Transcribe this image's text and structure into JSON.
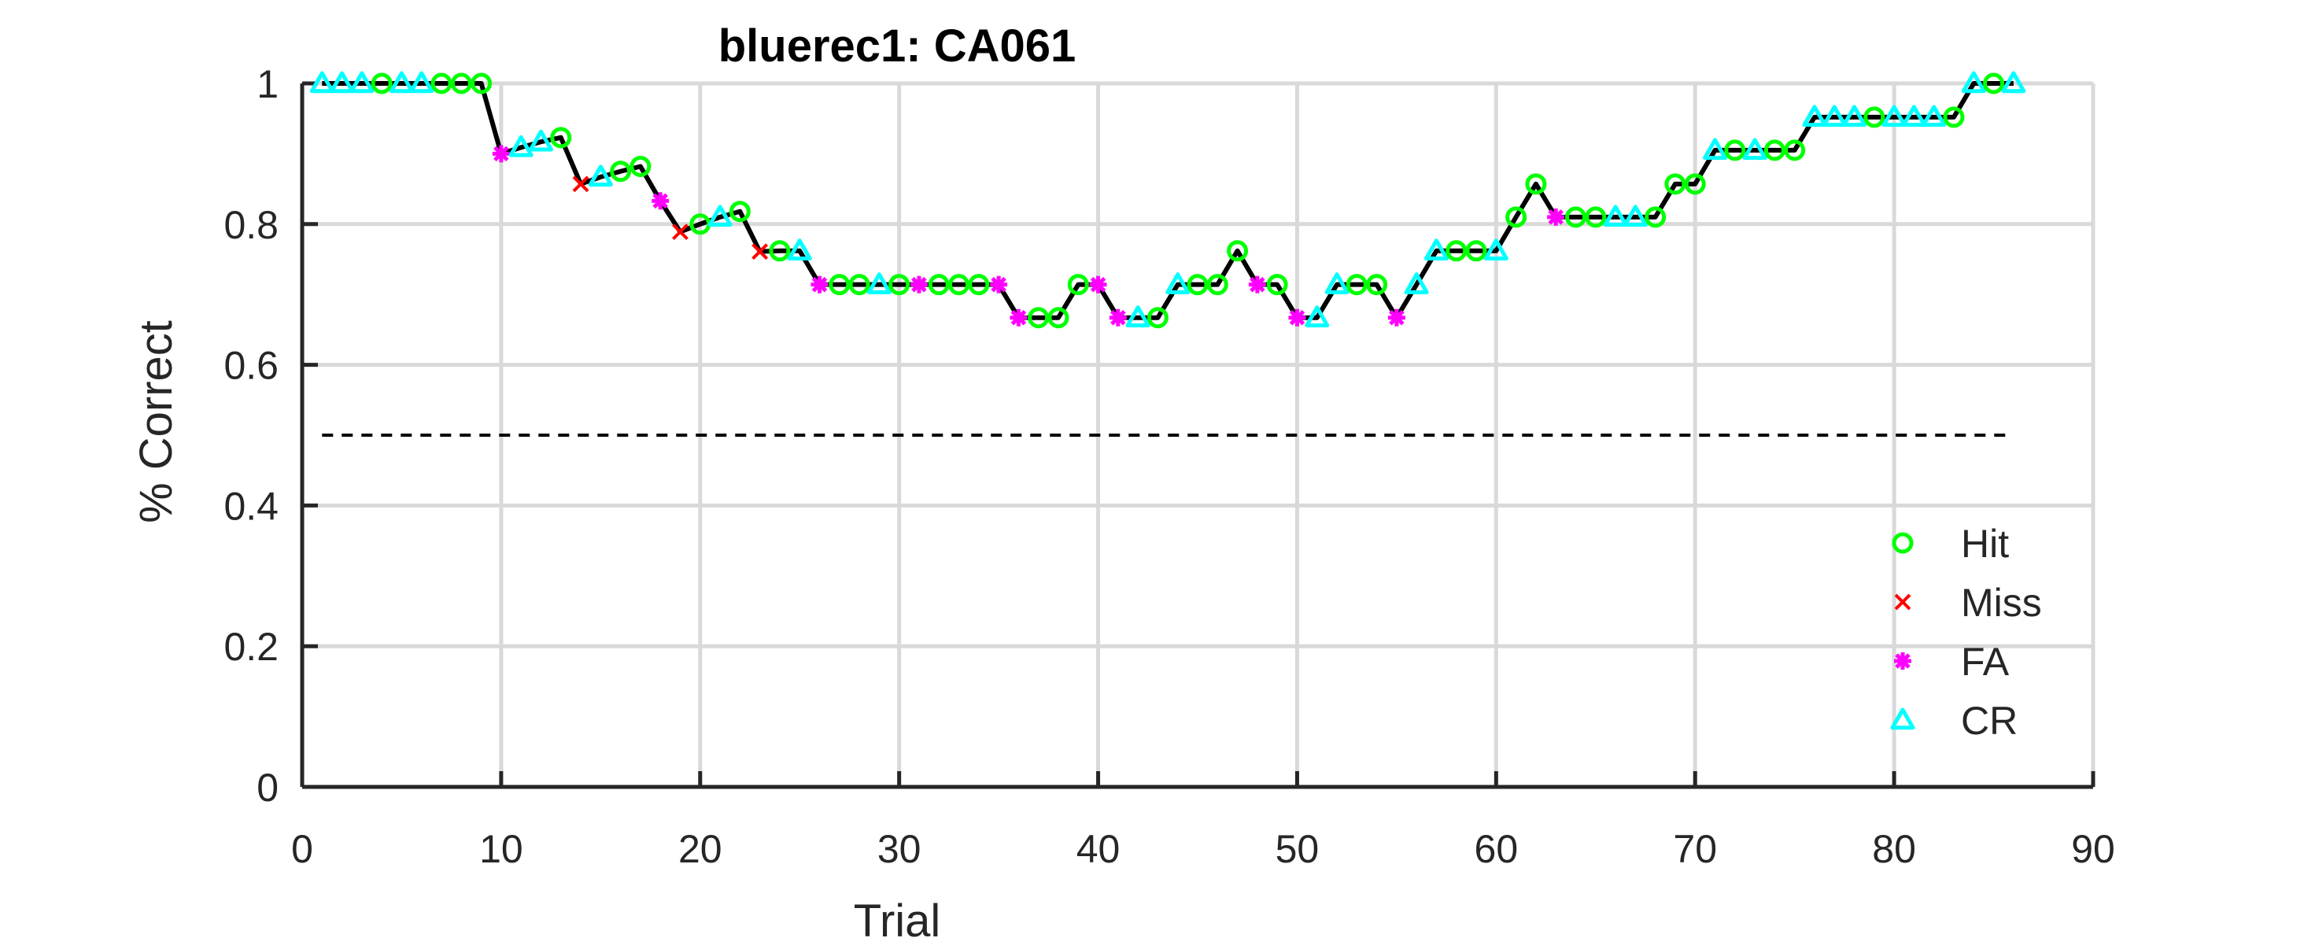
{
  "chart_data": {
    "type": "line",
    "title": "bluerec1: CA061",
    "xlabel": "Trial",
    "ylabel": "% Correct",
    "xlim": [
      0,
      90
    ],
    "ylim": [
      0,
      1
    ],
    "xticks": [
      0,
      10,
      20,
      30,
      40,
      50,
      60,
      70,
      80,
      90
    ],
    "yticks": [
      0,
      0.2,
      0.4,
      0.6,
      0.8,
      1
    ],
    "grid": true,
    "legend_position": "lower-right",
    "chance_level": 0.5,
    "chance_range": [
      1,
      86
    ],
    "series": [
      {
        "name": "Hit",
        "marker": "circle",
        "color": "#00ff00"
      },
      {
        "name": "Miss",
        "marker": "x",
        "color": "#ff0000"
      },
      {
        "name": "FA",
        "marker": "asterisk",
        "color": "#ff00ff"
      },
      {
        "name": "CR",
        "marker": "triangle",
        "color": "#00ffff"
      }
    ],
    "trials": [
      {
        "x": 1,
        "y": 1.0,
        "outcome": "CR"
      },
      {
        "x": 2,
        "y": 1.0,
        "outcome": "CR"
      },
      {
        "x": 3,
        "y": 1.0,
        "outcome": "CR"
      },
      {
        "x": 4,
        "y": 1.0,
        "outcome": "Hit"
      },
      {
        "x": 5,
        "y": 1.0,
        "outcome": "CR"
      },
      {
        "x": 6,
        "y": 1.0,
        "outcome": "CR"
      },
      {
        "x": 7,
        "y": 1.0,
        "outcome": "Hit"
      },
      {
        "x": 8,
        "y": 1.0,
        "outcome": "Hit"
      },
      {
        "x": 9,
        "y": 1.0,
        "outcome": "Hit"
      },
      {
        "x": 10,
        "y": 0.9,
        "outcome": "FA"
      },
      {
        "x": 11,
        "y": 0.909,
        "outcome": "CR"
      },
      {
        "x": 12,
        "y": 0.917,
        "outcome": "CR"
      },
      {
        "x": 13,
        "y": 0.923,
        "outcome": "Hit"
      },
      {
        "x": 14,
        "y": 0.857,
        "outcome": "Miss"
      },
      {
        "x": 15,
        "y": 0.867,
        "outcome": "CR"
      },
      {
        "x": 16,
        "y": 0.875,
        "outcome": "Hit"
      },
      {
        "x": 17,
        "y": 0.882,
        "outcome": "Hit"
      },
      {
        "x": 18,
        "y": 0.833,
        "outcome": "FA"
      },
      {
        "x": 19,
        "y": 0.789,
        "outcome": "Miss"
      },
      {
        "x": 20,
        "y": 0.8,
        "outcome": "Hit"
      },
      {
        "x": 21,
        "y": 0.81,
        "outcome": "CR"
      },
      {
        "x": 22,
        "y": 0.818,
        "outcome": "Hit"
      },
      {
        "x": 23,
        "y": 0.761,
        "outcome": "Miss"
      },
      {
        "x": 24,
        "y": 0.762,
        "outcome": "Hit"
      },
      {
        "x": 25,
        "y": 0.762,
        "outcome": "CR"
      },
      {
        "x": 26,
        "y": 0.714,
        "outcome": "FA"
      },
      {
        "x": 27,
        "y": 0.714,
        "outcome": "Hit"
      },
      {
        "x": 28,
        "y": 0.714,
        "outcome": "Hit"
      },
      {
        "x": 29,
        "y": 0.714,
        "outcome": "CR"
      },
      {
        "x": 30,
        "y": 0.714,
        "outcome": "Hit"
      },
      {
        "x": 31,
        "y": 0.714,
        "outcome": "FA"
      },
      {
        "x": 32,
        "y": 0.714,
        "outcome": "Hit"
      },
      {
        "x": 33,
        "y": 0.714,
        "outcome": "Hit"
      },
      {
        "x": 34,
        "y": 0.714,
        "outcome": "Hit"
      },
      {
        "x": 35,
        "y": 0.714,
        "outcome": "FA"
      },
      {
        "x": 36,
        "y": 0.667,
        "outcome": "FA"
      },
      {
        "x": 37,
        "y": 0.667,
        "outcome": "Hit"
      },
      {
        "x": 38,
        "y": 0.667,
        "outcome": "Hit"
      },
      {
        "x": 39,
        "y": 0.714,
        "outcome": "Hit"
      },
      {
        "x": 40,
        "y": 0.714,
        "outcome": "FA"
      },
      {
        "x": 41,
        "y": 0.667,
        "outcome": "FA"
      },
      {
        "x": 42,
        "y": 0.667,
        "outcome": "CR"
      },
      {
        "x": 43,
        "y": 0.667,
        "outcome": "Hit"
      },
      {
        "x": 44,
        "y": 0.714,
        "outcome": "CR"
      },
      {
        "x": 45,
        "y": 0.714,
        "outcome": "Hit"
      },
      {
        "x": 46,
        "y": 0.714,
        "outcome": "Hit"
      },
      {
        "x": 47,
        "y": 0.762,
        "outcome": "Hit"
      },
      {
        "x": 48,
        "y": 0.714,
        "outcome": "FA"
      },
      {
        "x": 49,
        "y": 0.714,
        "outcome": "Hit"
      },
      {
        "x": 50,
        "y": 0.667,
        "outcome": "FA"
      },
      {
        "x": 51,
        "y": 0.667,
        "outcome": "CR"
      },
      {
        "x": 52,
        "y": 0.714,
        "outcome": "CR"
      },
      {
        "x": 53,
        "y": 0.714,
        "outcome": "Hit"
      },
      {
        "x": 54,
        "y": 0.714,
        "outcome": "Hit"
      },
      {
        "x": 55,
        "y": 0.667,
        "outcome": "FA"
      },
      {
        "x": 56,
        "y": 0.714,
        "outcome": "CR"
      },
      {
        "x": 57,
        "y": 0.762,
        "outcome": "CR"
      },
      {
        "x": 58,
        "y": 0.762,
        "outcome": "Hit"
      },
      {
        "x": 59,
        "y": 0.762,
        "outcome": "Hit"
      },
      {
        "x": 60,
        "y": 0.762,
        "outcome": "CR"
      },
      {
        "x": 61,
        "y": 0.81,
        "outcome": "Hit"
      },
      {
        "x": 62,
        "y": 0.857,
        "outcome": "Hit"
      },
      {
        "x": 63,
        "y": 0.81,
        "outcome": "FA"
      },
      {
        "x": 64,
        "y": 0.81,
        "outcome": "Hit"
      },
      {
        "x": 65,
        "y": 0.81,
        "outcome": "Hit"
      },
      {
        "x": 66,
        "y": 0.81,
        "outcome": "CR"
      },
      {
        "x": 67,
        "y": 0.81,
        "outcome": "CR"
      },
      {
        "x": 68,
        "y": 0.81,
        "outcome": "Hit"
      },
      {
        "x": 69,
        "y": 0.857,
        "outcome": "Hit"
      },
      {
        "x": 70,
        "y": 0.857,
        "outcome": "Hit"
      },
      {
        "x": 71,
        "y": 0.905,
        "outcome": "CR"
      },
      {
        "x": 72,
        "y": 0.905,
        "outcome": "Hit"
      },
      {
        "x": 73,
        "y": 0.905,
        "outcome": "CR"
      },
      {
        "x": 74,
        "y": 0.905,
        "outcome": "Hit"
      },
      {
        "x": 75,
        "y": 0.905,
        "outcome": "Hit"
      },
      {
        "x": 76,
        "y": 0.952,
        "outcome": "CR"
      },
      {
        "x": 77,
        "y": 0.952,
        "outcome": "CR"
      },
      {
        "x": 78,
        "y": 0.952,
        "outcome": "CR"
      },
      {
        "x": 79,
        "y": 0.952,
        "outcome": "Hit"
      },
      {
        "x": 80,
        "y": 0.952,
        "outcome": "CR"
      },
      {
        "x": 81,
        "y": 0.952,
        "outcome": "CR"
      },
      {
        "x": 82,
        "y": 0.952,
        "outcome": "CR"
      },
      {
        "x": 83,
        "y": 0.952,
        "outcome": "Hit"
      },
      {
        "x": 84,
        "y": 1.0,
        "outcome": "CR"
      },
      {
        "x": 85,
        "y": 1.0,
        "outcome": "Hit"
      },
      {
        "x": 86,
        "y": 1.0,
        "outcome": "CR"
      }
    ]
  }
}
